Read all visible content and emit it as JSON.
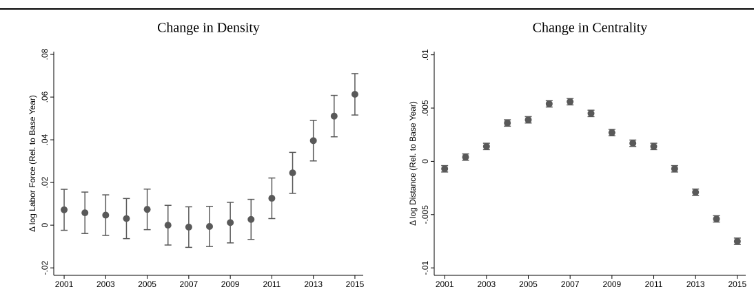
{
  "chart_data": [
    {
      "type": "scatter",
      "title": "Change in Density",
      "y_label": "Δ log Labor Force (Rel. to Base Year)",
      "x": [
        2001,
        2002,
        2003,
        2004,
        2005,
        2006,
        2007,
        2008,
        2009,
        2010,
        2011,
        2012,
        2013,
        2014,
        2015
      ],
      "values": [
        0.0072,
        0.0058,
        0.0047,
        0.0031,
        0.0074,
        0.0,
        -0.0009,
        -0.0006,
        0.0012,
        0.0027,
        0.0126,
        0.0245,
        0.0396,
        0.0511,
        0.0613
      ],
      "errors": [
        0.0096,
        0.0097,
        0.0095,
        0.0094,
        0.0095,
        0.0093,
        0.0095,
        0.0094,
        0.0095,
        0.0094,
        0.0095,
        0.0096,
        0.0095,
        0.0097,
        0.0097
      ],
      "color": "#595959",
      "xlim": [
        2000.5,
        2015.4
      ],
      "xticks": [
        2001,
        2003,
        2005,
        2007,
        2009,
        2011,
        2013,
        2015
      ],
      "ylim": [
        -0.0235,
        0.0813
      ],
      "yticks": [
        {
          "value": -0.02,
          "label": "-.02"
        },
        0,
        {
          "value": 0.02,
          "label": ".02"
        },
        {
          "value": 0.04,
          "label": ".04"
        },
        {
          "value": 0.06,
          "label": ".06"
        },
        {
          "value": 0.08,
          "label": ".08"
        }
      ]
    },
    {
      "type": "scatter",
      "title": "Change in Centrality",
      "y_label": "Δ log Distance (Rel. to Base Year)",
      "x": [
        2001,
        2002,
        2003,
        2004,
        2005,
        2006,
        2007,
        2008,
        2009,
        2010,
        2011,
        2012,
        2013,
        2014,
        2015
      ],
      "values": [
        -0.0007,
        0.0004,
        0.0014,
        0.0036,
        0.0039,
        0.0054,
        0.0056,
        0.0045,
        0.0027,
        0.0017,
        0.0014,
        -0.0007,
        -0.0029,
        -0.0054,
        -0.0075
      ],
      "errors": [
        0.0003,
        0.0003,
        0.0003,
        0.0003,
        0.0003,
        0.0003,
        0.0003,
        0.0003,
        0.0003,
        0.0003,
        0.0003,
        0.0003,
        0.0003,
        0.0003,
        0.0003
      ],
      "color": "#595959",
      "xlim": [
        2000.5,
        2015.4
      ],
      "xticks": [
        2001,
        2003,
        2005,
        2007,
        2009,
        2011,
        2013,
        2015
      ],
      "ylim": [
        -0.0107,
        0.0103
      ],
      "yticks": [
        {
          "value": -0.01,
          "label": "-.01"
        },
        {
          "value": -0.005,
          "label": "-.005"
        },
        0,
        {
          "value": 0.005,
          "label": ".005"
        },
        {
          "value": 0.01,
          "label": ".01"
        }
      ]
    }
  ]
}
